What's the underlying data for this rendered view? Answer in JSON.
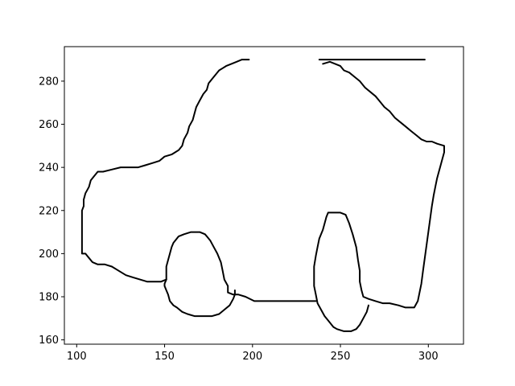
{
  "chart_data": {
    "type": "line",
    "title": "",
    "xlabel": "",
    "ylabel": "",
    "xlim": [
      93,
      320
    ],
    "ylim": [
      158,
      296
    ],
    "xticks": [
      100,
      150,
      200,
      250,
      300
    ],
    "yticks": [
      160,
      180,
      200,
      220,
      240,
      260,
      280
    ],
    "grid": false,
    "legend": "none",
    "line_color": "#000000",
    "series": [
      {
        "points": [
          [
            298,
            290
          ],
          [
            238,
            290
          ]
        ]
      },
      {
        "points": [
          [
            240,
            288
          ],
          [
            244,
            289
          ],
          [
            247,
            288
          ],
          [
            250,
            287
          ],
          [
            252,
            285
          ],
          [
            255,
            284
          ],
          [
            258,
            282
          ],
          [
            261,
            280
          ],
          [
            264,
            277
          ],
          [
            267,
            275
          ],
          [
            270,
            273
          ],
          [
            272,
            271
          ],
          [
            275,
            268
          ],
          [
            278,
            266
          ],
          [
            281,
            263
          ],
          [
            284,
            261
          ],
          [
            287,
            259
          ],
          [
            290,
            257
          ],
          [
            293,
            255
          ],
          [
            296,
            253
          ],
          [
            299,
            252
          ],
          [
            302,
            252
          ],
          [
            305,
            251
          ],
          [
            309,
            250
          ],
          [
            309,
            247
          ],
          [
            308,
            244
          ],
          [
            307,
            241
          ],
          [
            306,
            238
          ],
          [
            305,
            235
          ],
          [
            304,
            231
          ],
          [
            303,
            227
          ],
          [
            302,
            222
          ],
          [
            301,
            216
          ],
          [
            300,
            210
          ],
          [
            299,
            204
          ],
          [
            298,
            198
          ],
          [
            297,
            192
          ],
          [
            296,
            186
          ],
          [
            295,
            182
          ],
          [
            294,
            178
          ],
          [
            292,
            175
          ],
          [
            287,
            175
          ],
          [
            283,
            176
          ],
          [
            278,
            177
          ],
          [
            274,
            177
          ],
          [
            270,
            178
          ],
          [
            266,
            179
          ],
          [
            263,
            180
          ],
          [
            262,
            183
          ],
          [
            261,
            187
          ],
          [
            261,
            192
          ],
          [
            260,
            197
          ],
          [
            259,
            203
          ],
          [
            257,
            209
          ],
          [
            255,
            214
          ],
          [
            253,
            218
          ],
          [
            250,
            219
          ],
          [
            246,
            219
          ],
          [
            243,
            219
          ],
          [
            242,
            217
          ],
          [
            241,
            214
          ],
          [
            240,
            211
          ],
          [
            238,
            207
          ],
          [
            237,
            203
          ],
          [
            236,
            199
          ],
          [
            235,
            194
          ],
          [
            235,
            189
          ],
          [
            235,
            185
          ],
          [
            236,
            181
          ],
          [
            237,
            177
          ],
          [
            239,
            174
          ],
          [
            241,
            171
          ],
          [
            243,
            169
          ],
          [
            246,
            166
          ],
          [
            248,
            165
          ],
          [
            252,
            164
          ],
          [
            256,
            164
          ],
          [
            259,
            165
          ],
          [
            261,
            167
          ],
          [
            263,
            170
          ],
          [
            265,
            173
          ],
          [
            266,
            176
          ]
        ]
      },
      {
        "points": [
          [
            236,
            178
          ],
          [
            230,
            178
          ],
          [
            222,
            178
          ],
          [
            214,
            178
          ],
          [
            206,
            178
          ],
          [
            201,
            178
          ],
          [
            196,
            180
          ],
          [
            192,
            181
          ],
          [
            189,
            181
          ],
          [
            186,
            182
          ],
          [
            186,
            185
          ],
          [
            184,
            188
          ],
          [
            183,
            192
          ],
          [
            182,
            196
          ],
          [
            180,
            200
          ],
          [
            178,
            203
          ],
          [
            176,
            206
          ],
          [
            174,
            208
          ],
          [
            173,
            209
          ],
          [
            170,
            210
          ],
          [
            165,
            210
          ],
          [
            161,
            209
          ],
          [
            158,
            208
          ],
          [
            156,
            206
          ],
          [
            155,
            205
          ],
          [
            154,
            203
          ],
          [
            153,
            200
          ],
          [
            152,
            197
          ],
          [
            151,
            194
          ],
          [
            151,
            191
          ],
          [
            151,
            188
          ],
          [
            150,
            186
          ],
          [
            150,
            185
          ],
          [
            151,
            183
          ],
          [
            152,
            181
          ],
          [
            153,
            178
          ],
          [
            155,
            176
          ],
          [
            157,
            175
          ],
          [
            160,
            173
          ],
          [
            163,
            172
          ],
          [
            167,
            171
          ],
          [
            172,
            171
          ],
          [
            177,
            171
          ],
          [
            181,
            172
          ],
          [
            184,
            174
          ],
          [
            187,
            176
          ],
          [
            189,
            179
          ],
          [
            190,
            181
          ],
          [
            190,
            183
          ]
        ]
      },
      {
        "points": [
          [
            151,
            188
          ],
          [
            148,
            187
          ],
          [
            144,
            187
          ],
          [
            140,
            187
          ],
          [
            136,
            188
          ],
          [
            132,
            189
          ],
          [
            128,
            190
          ],
          [
            124,
            192
          ],
          [
            120,
            194
          ],
          [
            116,
            195
          ],
          [
            112,
            195
          ],
          [
            109,
            196
          ],
          [
            107,
            198
          ],
          [
            106,
            199
          ],
          [
            105,
            200
          ],
          [
            103,
            200
          ],
          [
            103,
            205
          ],
          [
            103,
            210
          ],
          [
            103,
            215
          ],
          [
            103,
            220
          ],
          [
            104,
            222
          ],
          [
            104,
            225
          ],
          [
            105,
            228
          ],
          [
            107,
            231
          ],
          [
            108,
            234
          ],
          [
            110,
            236
          ],
          [
            112,
            238
          ],
          [
            115,
            238
          ],
          [
            120,
            239
          ],
          [
            125,
            240
          ],
          [
            130,
            240
          ],
          [
            135,
            240
          ],
          [
            139,
            241
          ],
          [
            143,
            242
          ],
          [
            147,
            243
          ],
          [
            150,
            245
          ],
          [
            154,
            246
          ],
          [
            156,
            247
          ],
          [
            158,
            248
          ],
          [
            160,
            250
          ],
          [
            161,
            253
          ],
          [
            163,
            256
          ],
          [
            164,
            259
          ],
          [
            166,
            262
          ],
          [
            167,
            265
          ],
          [
            168,
            268
          ],
          [
            170,
            271
          ],
          [
            172,
            274
          ],
          [
            174,
            276
          ],
          [
            175,
            279
          ],
          [
            177,
            281
          ],
          [
            179,
            283
          ],
          [
            181,
            285
          ],
          [
            183,
            286
          ],
          [
            185,
            287
          ],
          [
            188,
            288
          ],
          [
            191,
            289
          ],
          [
            194,
            290
          ],
          [
            198,
            290
          ]
        ]
      }
    ]
  }
}
